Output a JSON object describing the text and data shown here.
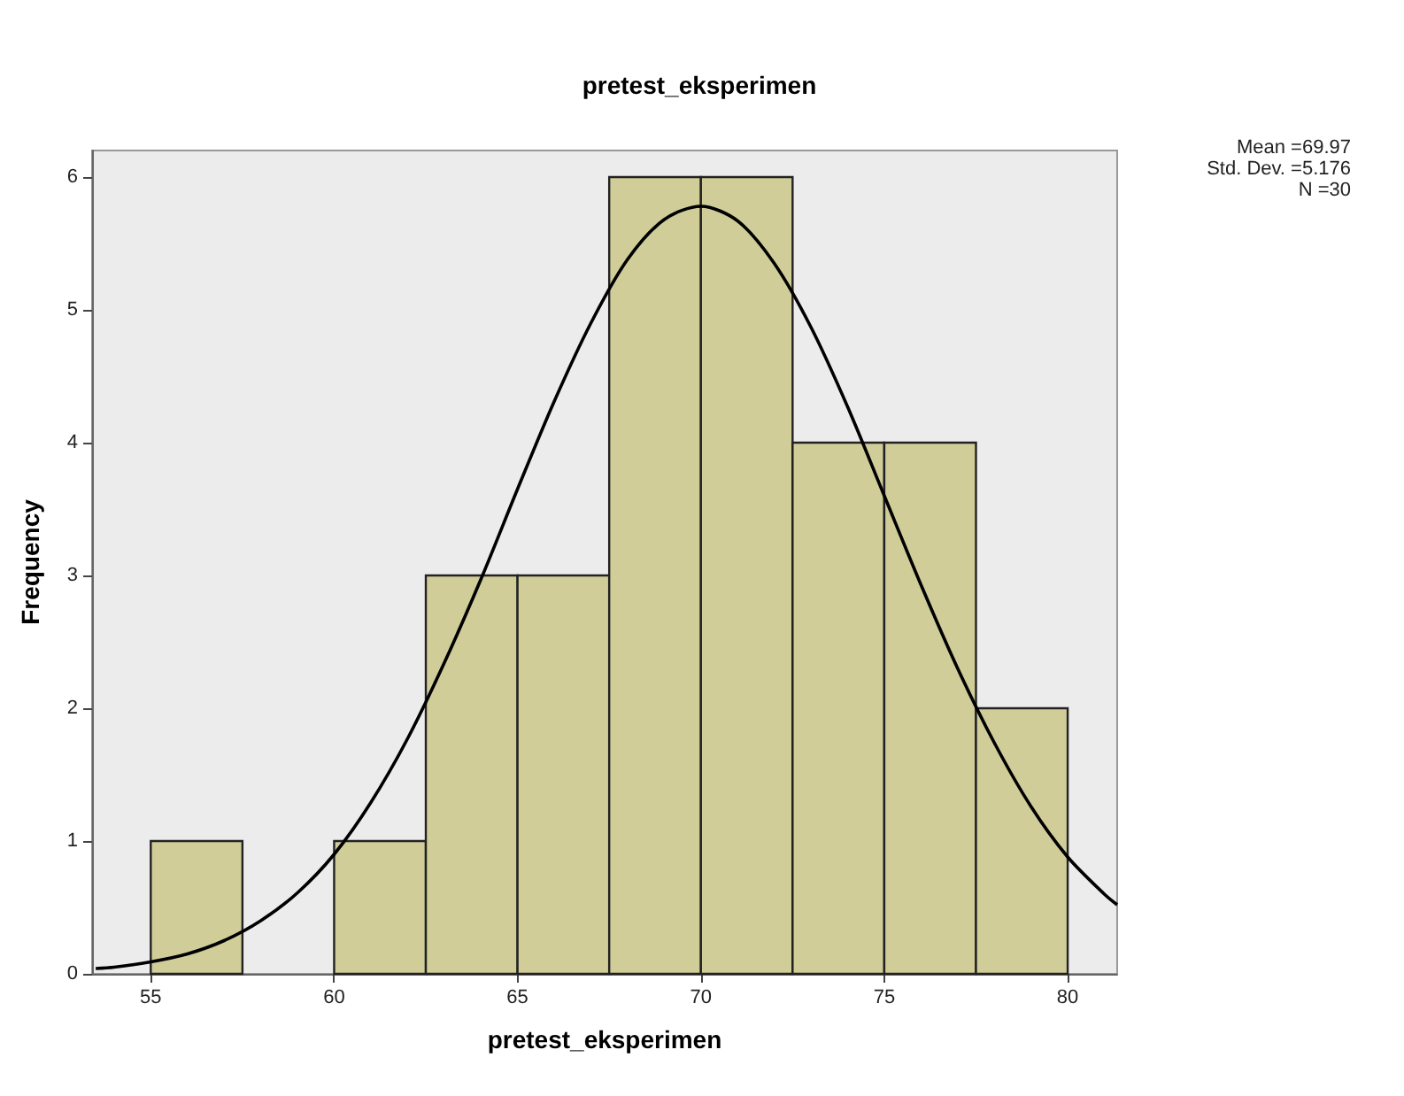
{
  "chart_data": {
    "type": "histogram",
    "title": "pretest_eksperimen",
    "xlabel": "pretest_eksperimen",
    "ylabel": "Frequency",
    "annotations": [
      "Mean =69.97",
      "Std. Dev. =5.176",
      "N =30"
    ],
    "xlim": [
      53.4,
      81.35
    ],
    "xticks": [
      55,
      60,
      65,
      70,
      75,
      80
    ],
    "ylim": [
      0,
      6.2
    ],
    "yticks": [
      0,
      1,
      2,
      3,
      4,
      5,
      6
    ],
    "series": [
      {
        "color": "#d0cd99",
        "bins": [
          55,
          57.5,
          60,
          62.5,
          65,
          67.5,
          70,
          72.5,
          75,
          77.5,
          80
        ],
        "values": [
          1,
          0,
          1,
          3,
          3,
          6,
          6,
          4,
          4,
          2
        ]
      },
      {
        "type": "line",
        "color": "#000000",
        "x": [
          53.5,
          54,
          55,
          56,
          57,
          58,
          59,
          60,
          61,
          62,
          63,
          64,
          65,
          66,
          67,
          68,
          69,
          70,
          71,
          72,
          73,
          74,
          75,
          76,
          77,
          78,
          79,
          80,
          81,
          81.35
        ],
        "values": [
          0.04,
          0.05,
          0.09,
          0.15,
          0.25,
          0.4,
          0.61,
          0.9,
          1.29,
          1.77,
          2.34,
          2.97,
          3.65,
          4.31,
          4.9,
          5.38,
          5.68,
          5.78,
          5.67,
          5.35,
          4.87,
          4.27,
          3.6,
          2.93,
          2.3,
          1.74,
          1.26,
          0.88,
          0.6,
          0.52
        ]
      }
    ]
  }
}
